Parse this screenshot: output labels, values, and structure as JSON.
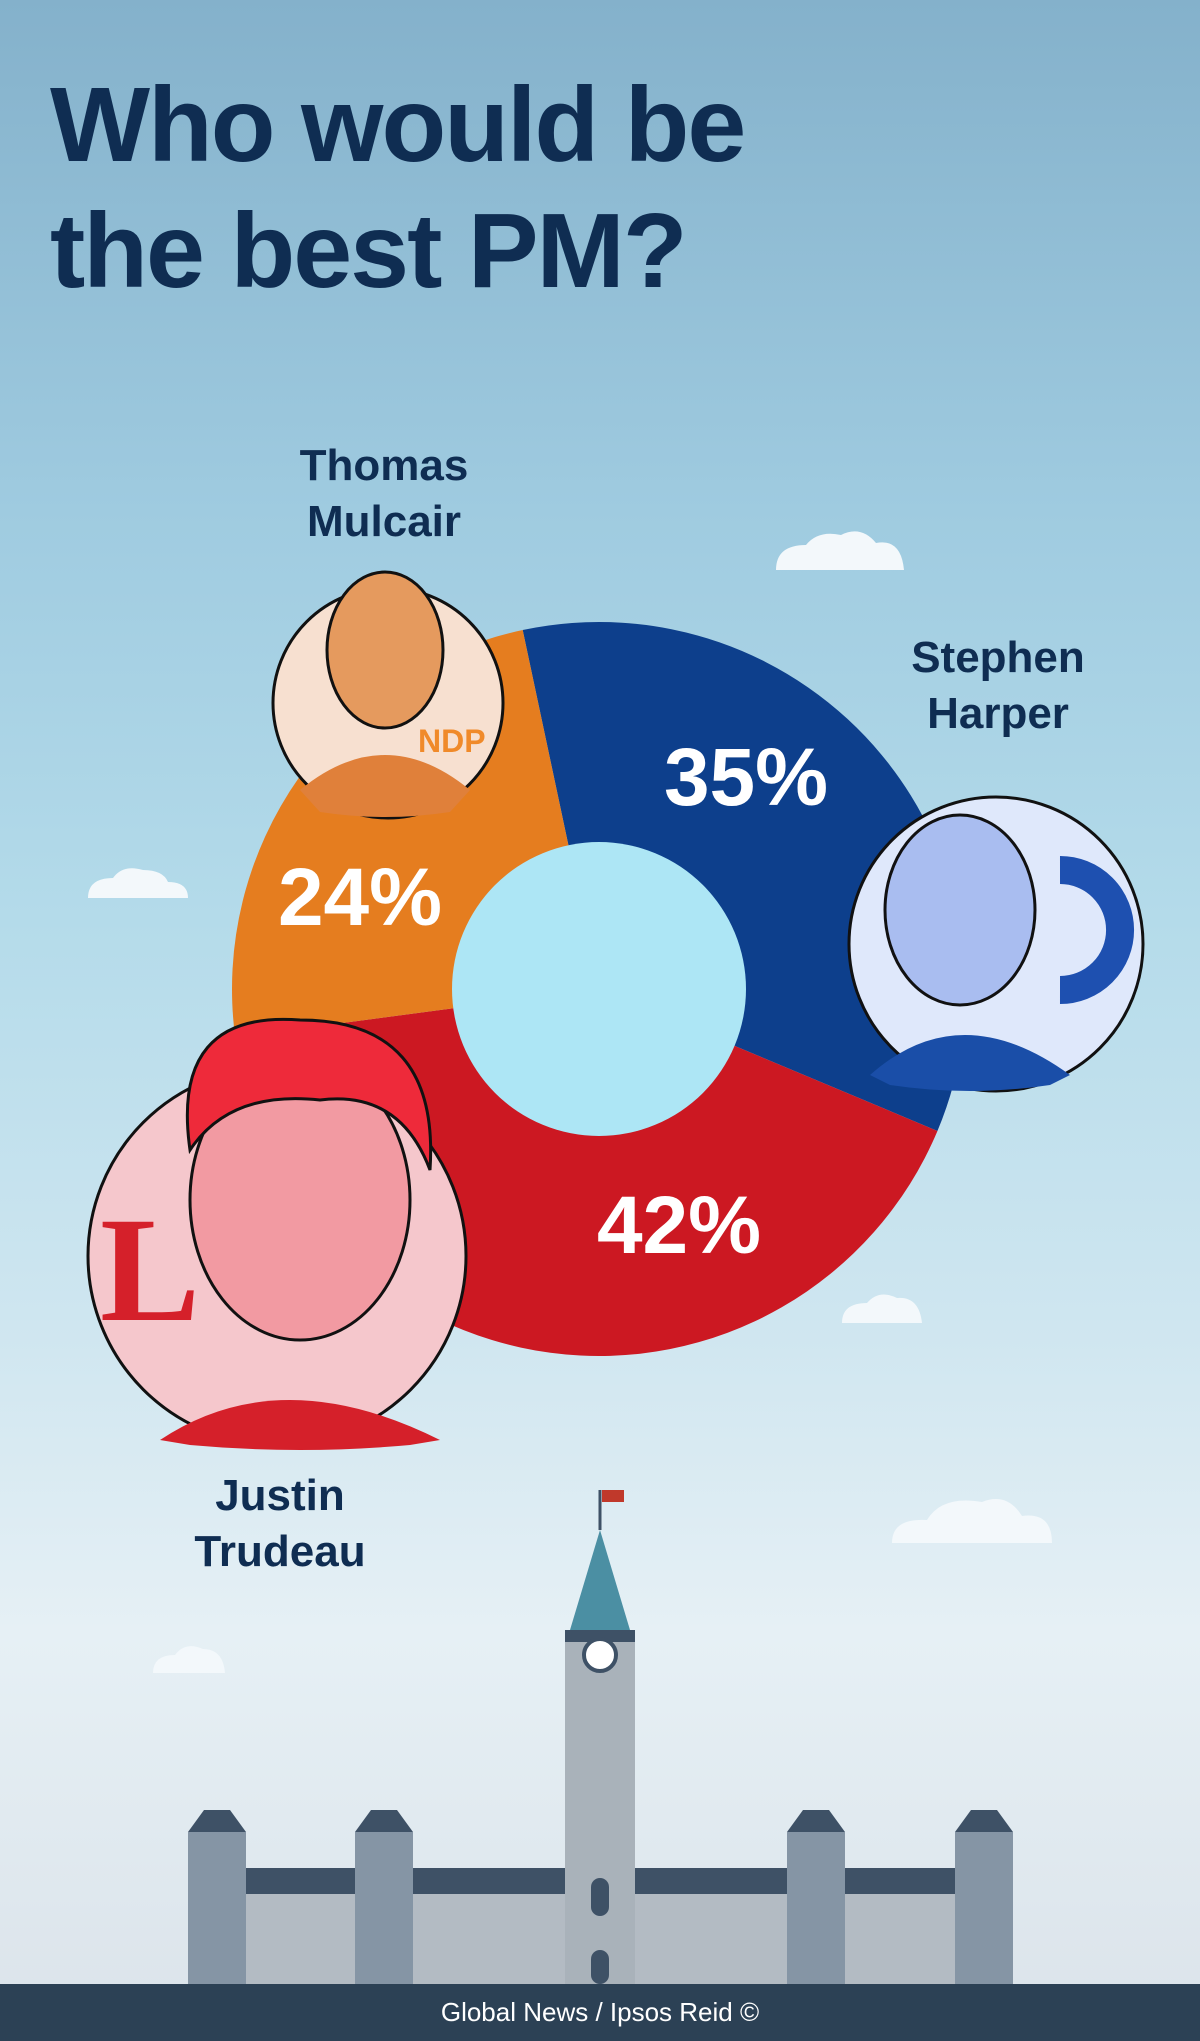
{
  "title_line1": "Who would be",
  "title_line2": "the best PM?",
  "chart_data": {
    "type": "pie",
    "style": "donut",
    "title": "Who would be the best PM?",
    "categories": [
      "Stephen Harper",
      "Justin Trudeau",
      "Thomas Mulcair"
    ],
    "values": [
      35,
      42,
      24
    ],
    "labels": [
      "35%",
      "42%",
      "24%"
    ],
    "colors": [
      "#0d3f8c",
      "#cc1822",
      "#e57d1f"
    ],
    "center_color": "#ade6f5"
  },
  "candidates": {
    "mulcair": {
      "first": "Thomas",
      "last": "Mulcair"
    },
    "harper": {
      "first": "Stephen",
      "last": "Harper"
    },
    "trudeau": {
      "first": "Justin",
      "last": "Trudeau"
    }
  },
  "footer": "Global News / Ipsos Reid ©"
}
